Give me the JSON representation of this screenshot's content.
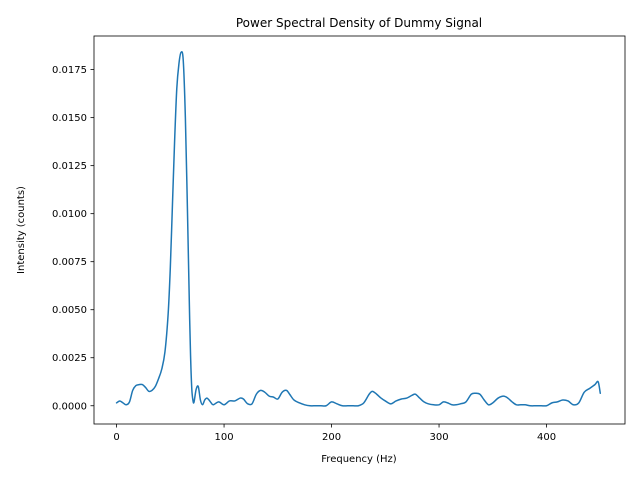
{
  "chart_data": {
    "type": "line",
    "title": "Power Spectral Density of Dummy Signal",
    "xlabel": "Frequency (Hz)",
    "ylabel": "Intensity (counts)",
    "xlim": [
      -21,
      473
    ],
    "ylim": [
      -0.00095,
      0.01925
    ],
    "xticks": [
      0,
      100,
      200,
      300,
      400
    ],
    "xtick_labels": [
      "0",
      "100",
      "200",
      "300",
      "400"
    ],
    "yticks": [
      0,
      0.0025,
      0.005,
      0.0075,
      0.01,
      0.0125,
      0.015,
      0.0175
    ],
    "ytick_labels": [
      "0.0000",
      "0.0025",
      "0.0050",
      "0.0075",
      "0.0100",
      "0.0125",
      "0.0150",
      "0.0175"
    ],
    "grid": false,
    "legend": "none",
    "series": [
      {
        "color": "#1f77b4",
        "x": [
          0,
          3,
          6,
          9,
          12,
          15,
          18,
          21,
          24,
          27,
          30,
          33,
          36,
          39,
          42,
          45,
          48,
          50,
          52,
          54,
          56,
          58,
          60,
          62,
          64,
          66,
          68,
          69,
          70,
          71,
          72,
          74,
          76,
          78,
          80,
          82,
          84,
          86,
          88,
          90,
          95,
          100,
          105,
          110,
          115,
          118,
          122,
          126,
          130,
          134,
          138,
          142,
          146,
          150,
          154,
          158,
          161,
          165,
          170,
          175,
          180,
          185,
          190,
          195,
          200,
          205,
          210,
          215,
          220,
          225,
          230,
          235,
          238,
          242,
          246,
          250,
          255,
          260,
          265,
          270,
          275,
          278,
          282,
          286,
          290,
          295,
          300,
          304,
          308,
          312,
          316,
          320,
          325,
          330,
          334,
          338,
          342,
          346,
          350,
          355,
          360,
          364,
          368,
          372,
          376,
          380,
          385,
          390,
          395,
          400,
          405,
          410,
          415,
          420,
          425,
          430,
          435,
          440,
          445,
          448,
          450
        ],
        "y": [
          0.00015,
          0.00025,
          0.00015,
          5e-05,
          0.0002,
          0.0008,
          0.00105,
          0.0011,
          0.0011,
          0.00095,
          0.00075,
          0.0008,
          0.001,
          0.0014,
          0.0019,
          0.0028,
          0.0048,
          0.0072,
          0.0105,
          0.0138,
          0.0165,
          0.0178,
          0.0184,
          0.018,
          0.015,
          0.01,
          0.0045,
          0.0023,
          0.00085,
          0.0003,
          0.00018,
          0.00085,
          0.001,
          0.0003,
          5e-05,
          0.0003,
          0.0004,
          0.0003,
          0.00015,
          5e-05,
          0.0002,
          5e-05,
          0.00025,
          0.00025,
          0.0004,
          0.00035,
          0.0001,
          0.0001,
          0.0006,
          0.0008,
          0.0007,
          0.0005,
          0.00045,
          0.00035,
          0.0007,
          0.0008,
          0.0006,
          0.0003,
          0.00015,
          5e-05,
          0.0,
          0.0,
          0.0,
          0.0,
          0.0002,
          0.0001,
          0.0,
          0.0,
          0.0,
          0.0,
          0.00015,
          0.0006,
          0.00075,
          0.0006,
          0.0004,
          0.00025,
          0.0001,
          0.00025,
          0.00035,
          0.0004,
          0.00055,
          0.0006,
          0.0004,
          0.0002,
          0.0001,
          5e-05,
          5e-05,
          0.0002,
          0.00015,
          5e-05,
          5e-05,
          0.0001,
          0.0002,
          0.0006,
          0.00065,
          0.0006,
          0.0003,
          5e-05,
          0.00015,
          0.0004,
          0.0005,
          0.0004,
          0.0002,
          5e-05,
          5e-05,
          5e-05,
          0.0,
          0.0,
          0.0,
          0.0,
          0.00015,
          0.0002,
          0.0003,
          0.00025,
          5e-05,
          0.00015,
          0.0007,
          0.0009,
          0.0011,
          0.00125,
          0.00065
        ]
      }
    ]
  }
}
